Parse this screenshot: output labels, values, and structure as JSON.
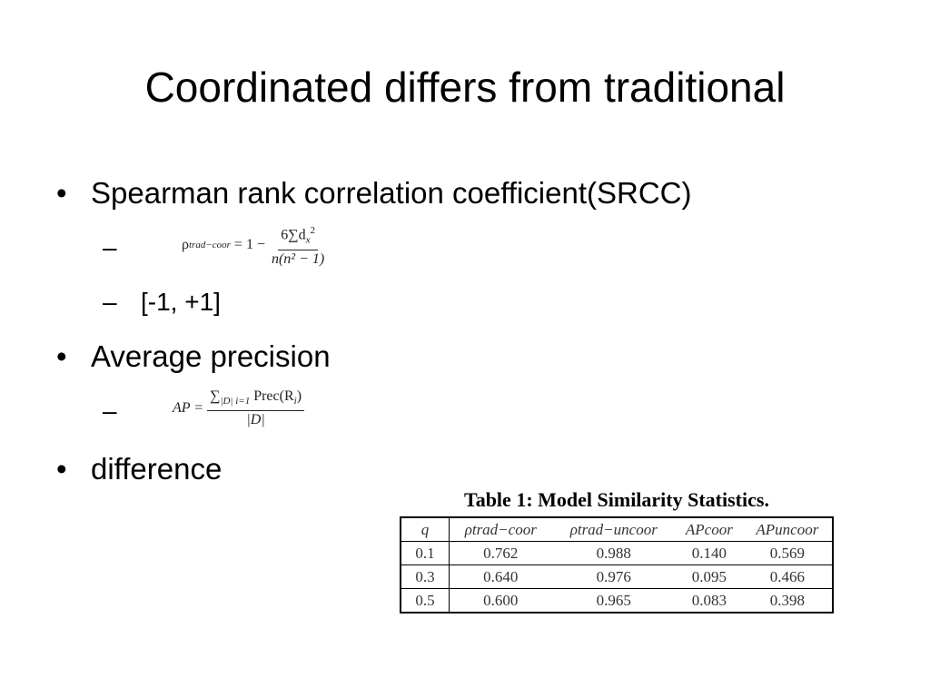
{
  "slide": {
    "title": "Coordinated differs from traditional",
    "bullets": [
      {
        "text": "Spearman rank correlation coefficient(SRCC)",
        "subs": [
          {
            "formula": {
              "lhs_symbol": "ρ",
              "lhs_subscript": "trad−coor",
              "equals": "= 1 −",
              "numerator": "6∑d",
              "numerator_sub": "x",
              "numerator_sup": "2",
              "denominator": "n(n² − 1)"
            }
          },
          {
            "text": "[-1, +1]"
          }
        ]
      },
      {
        "text": "Average precision",
        "subs": [
          {
            "formula": {
              "lhs": "AP =",
              "sum": "∑",
              "sum_limits": "|D| i=1",
              "numerator_rest": "Prec(R",
              "numerator_sub": "i",
              "numerator_close": ")",
              "denominator": "|D|"
            }
          }
        ]
      },
      {
        "text": "difference"
      }
    ],
    "bullet_symbol": "•",
    "dash_symbol": "–"
  },
  "table": {
    "caption": "Table 1: Model Similarity Statistics.",
    "headers": [
      "q",
      "ρtrad−coor",
      "ρtrad−uncoor",
      "APcoor",
      "APuncoor"
    ],
    "rows": [
      [
        "0.1",
        "0.762",
        "0.988",
        "0.140",
        "0.569"
      ],
      [
        "0.3",
        "0.640",
        "0.976",
        "0.095",
        "0.466"
      ],
      [
        "0.5",
        "0.600",
        "0.965",
        "0.083",
        "0.398"
      ]
    ]
  }
}
